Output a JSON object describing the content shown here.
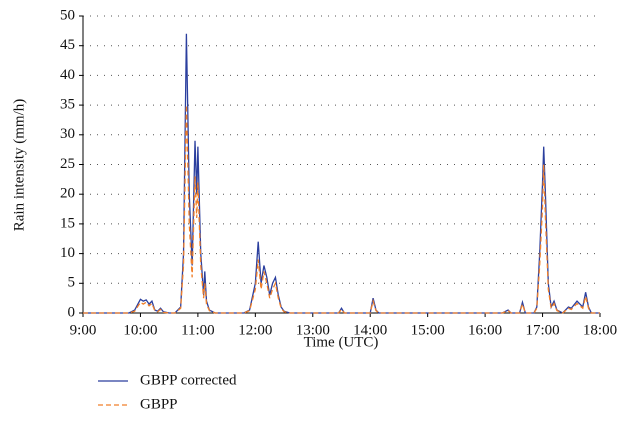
{
  "chart_data": {
    "type": "line",
    "x_label": "Time (UTC)",
    "y_label": "Rain intensity (mm/h)",
    "x": [
      9,
      9.8,
      9.9,
      10.0,
      10.05,
      10.1,
      10.15,
      10.2,
      10.25,
      10.3,
      10.35,
      10.4,
      10.5,
      10.6,
      10.7,
      10.75,
      10.8,
      10.85,
      10.9,
      10.95,
      10.98,
      11.0,
      11.05,
      11.1,
      11.12,
      11.15,
      11.2,
      11.3,
      11.8,
      11.9,
      12.0,
      12.05,
      12.1,
      12.15,
      12.2,
      12.25,
      12.3,
      12.35,
      12.4,
      12.45,
      12.5,
      12.6,
      13.45,
      13.5,
      13.55,
      14.0,
      14.05,
      14.1,
      14.15,
      16.3,
      16.4,
      16.45,
      16.6,
      16.65,
      16.7,
      16.85,
      16.9,
      16.95,
      17.0,
      17.02,
      17.05,
      17.1,
      17.15,
      17.2,
      17.25,
      17.35,
      17.45,
      17.5,
      17.6,
      17.65,
      17.7,
      17.75,
      17.8,
      17.85,
      18.0
    ],
    "series": [
      {
        "name": "GBPP corrected",
        "color": "#2b3f9e",
        "dash": false,
        "values": [
          0,
          0,
          0.5,
          2.3,
          2.0,
          2.2,
          1.5,
          2.0,
          0.5,
          0.3,
          0.8,
          0.2,
          0,
          0,
          1.0,
          10,
          47,
          20,
          8,
          29,
          20,
          28,
          10,
          3,
          7,
          2,
          0.5,
          0,
          0,
          0.5,
          5,
          12,
          5,
          8,
          6,
          3,
          5,
          6,
          3,
          1,
          0.3,
          0,
          0,
          0.8,
          0,
          0,
          2.5,
          0.5,
          0,
          0,
          0.5,
          0,
          0,
          1.8,
          0,
          0,
          1,
          10,
          22,
          28,
          20,
          5,
          1,
          2,
          0.5,
          0,
          1,
          0.8,
          2,
          1.5,
          1,
          3.5,
          1,
          0,
          0
        ]
      },
      {
        "name": "GBPP",
        "color": "#f07f2a",
        "dash": true,
        "values": [
          0,
          0,
          0.3,
          1.8,
          1.5,
          1.8,
          1.2,
          1.6,
          0.4,
          0.2,
          0.6,
          0.1,
          0,
          0,
          0.8,
          8,
          35,
          15,
          6,
          23,
          16,
          22,
          8,
          2.5,
          5,
          1.5,
          0.4,
          0,
          0,
          0.4,
          4,
          9,
          4,
          7,
          5,
          2.5,
          4,
          5,
          2.5,
          0.8,
          0.2,
          0,
          0,
          0.6,
          0,
          0,
          2,
          0.4,
          0,
          0,
          0.4,
          0,
          0,
          1.5,
          0,
          0,
          0.8,
          8,
          18,
          25,
          16,
          4,
          0.8,
          1.6,
          0.4,
          0,
          0.8,
          0.6,
          1.6,
          1.2,
          0.8,
          2.8,
          0.8,
          0,
          0
        ]
      }
    ],
    "xlim": [
      9,
      18
    ],
    "xticks": [
      {
        "value": 9,
        "label": "9:00"
      },
      {
        "value": 10,
        "label": "10:00"
      },
      {
        "value": 11,
        "label": "11:00"
      },
      {
        "value": 12,
        "label": "12:00"
      },
      {
        "value": 13,
        "label": "13:00"
      },
      {
        "value": 14,
        "label": "14:00"
      },
      {
        "value": 15,
        "label": "15:00"
      },
      {
        "value": 16,
        "label": "16:00"
      },
      {
        "value": 17,
        "label": "17:00"
      },
      {
        "value": 18,
        "label": "18:00"
      }
    ],
    "ylim": [
      0,
      50
    ],
    "yticks": [
      0,
      5,
      10,
      15,
      20,
      25,
      30,
      35,
      40,
      45,
      50
    ],
    "grid": true,
    "legend": "bottom-left"
  }
}
